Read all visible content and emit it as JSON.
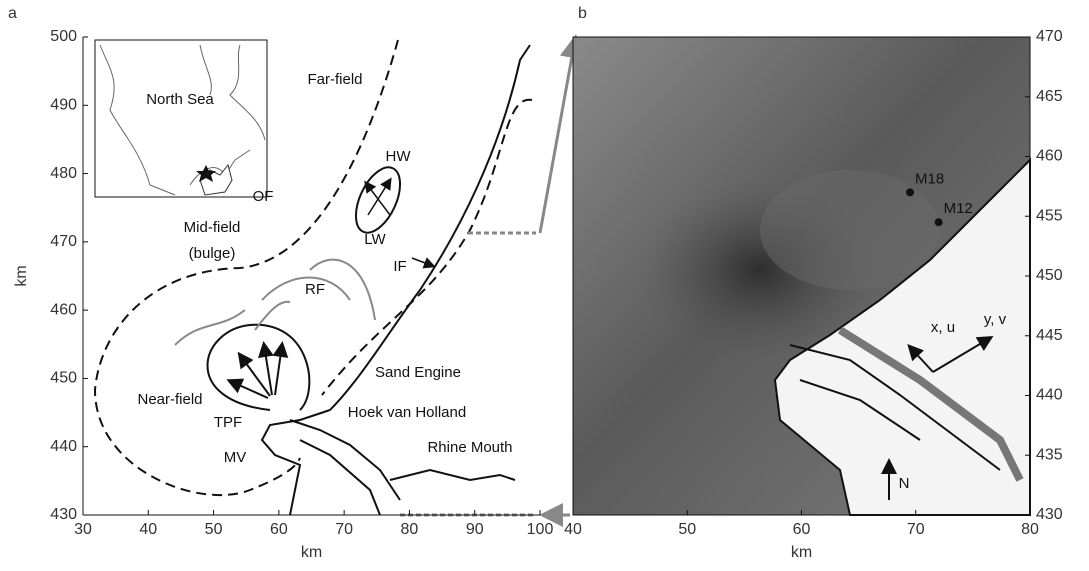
{
  "chart_data": [
    {
      "type": "map",
      "panel_label": "a",
      "xlabel": "km",
      "ylabel": "km",
      "xlim": [
        30,
        100
      ],
      "ylim": [
        430,
        500
      ],
      "xticks": [
        30,
        40,
        50,
        60,
        70,
        80,
        90,
        100
      ],
      "yticks": [
        430,
        440,
        450,
        460,
        470,
        480,
        490,
        500
      ],
      "annotations": [
        "North Sea",
        "Far-field",
        "HW",
        "LW",
        "OF",
        "Mid-field",
        "(bulge)",
        "IF",
        "RF",
        "Near-field",
        "TPF",
        "Sand Engine",
        "Hoek van Holland",
        "MV",
        "Rhine Mouth"
      ]
    },
    {
      "type": "map",
      "panel_label": "b",
      "xlabel": "km",
      "xlim": [
        40,
        80
      ],
      "ylim": [
        430,
        470
      ],
      "xticks": [
        40,
        50,
        60,
        70,
        80
      ],
      "yticks": [
        430,
        435,
        440,
        445,
        450,
        455,
        460,
        465,
        470
      ],
      "points": [
        {
          "label": "M18",
          "x": 69.5,
          "y": 457
        },
        {
          "label": "M12",
          "x": 72,
          "y": 454.5
        }
      ],
      "annotations": [
        "x, u",
        "y, v",
        "N"
      ]
    }
  ]
}
